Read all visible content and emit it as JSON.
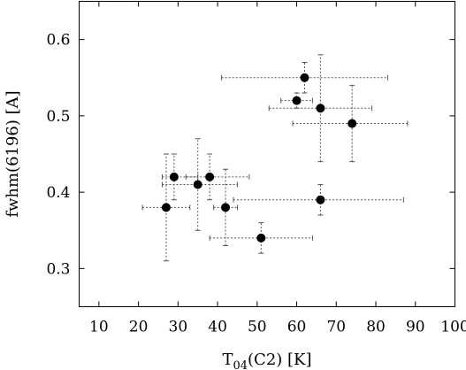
{
  "chart_data": {
    "type": "scatter",
    "title": "",
    "xlabel": "T",
    "xlabel_subscript": "04",
    "xlabel_suffix": "(C2) [K]",
    "ylabel": "fwhm(6196) [A]",
    "xlim": [
      5,
      100
    ],
    "ylim": [
      0.25,
      0.65
    ],
    "xticks": [
      10,
      20,
      30,
      40,
      50,
      60,
      70,
      80,
      90,
      100
    ],
    "yticks": [
      0.3,
      0.4,
      0.5,
      0.6
    ],
    "ytick_labels": [
      "0.3",
      "0.4",
      "0.5",
      "0.6"
    ],
    "grid": false,
    "series": [
      {
        "marker": "filled-circle",
        "color": "#000000",
        "points": [
          {
            "x": 27,
            "y": 0.38,
            "xerr": [
              21,
              33
            ],
            "yerr": [
              0.31,
              0.45
            ]
          },
          {
            "x": 29,
            "y": 0.42,
            "xerr": [
              26,
              35
            ],
            "yerr": [
              0.39,
              0.45
            ]
          },
          {
            "x": 35,
            "y": 0.41,
            "xerr": [
              26,
              45
            ],
            "yerr": [
              0.35,
              0.47
            ]
          },
          {
            "x": 38,
            "y": 0.42,
            "xerr": [
              32,
              48
            ],
            "yerr": [
              0.39,
              0.45
            ]
          },
          {
            "x": 42,
            "y": 0.38,
            "xerr": [
              39,
              45
            ],
            "yerr": [
              0.33,
              0.43
            ]
          },
          {
            "x": 51,
            "y": 0.34,
            "xerr": [
              38,
              64
            ],
            "yerr": [
              0.32,
              0.36
            ]
          },
          {
            "x": 60,
            "y": 0.52,
            "xerr": [
              56,
              64
            ],
            "yerr": [
              0.51,
              0.53
            ]
          },
          {
            "x": 62,
            "y": 0.55,
            "xerr": [
              41,
              83
            ],
            "yerr": [
              0.53,
              0.57
            ]
          },
          {
            "x": 66,
            "y": 0.51,
            "xerr": [
              53,
              79
            ],
            "yerr": [
              0.44,
              0.58
            ]
          },
          {
            "x": 66,
            "y": 0.39,
            "xerr": [
              44,
              87
            ],
            "yerr": [
              0.37,
              0.41
            ]
          },
          {
            "x": 74,
            "y": 0.49,
            "xerr": [
              59,
              88
            ],
            "yerr": [
              0.44,
              0.54
            ]
          }
        ]
      }
    ]
  }
}
